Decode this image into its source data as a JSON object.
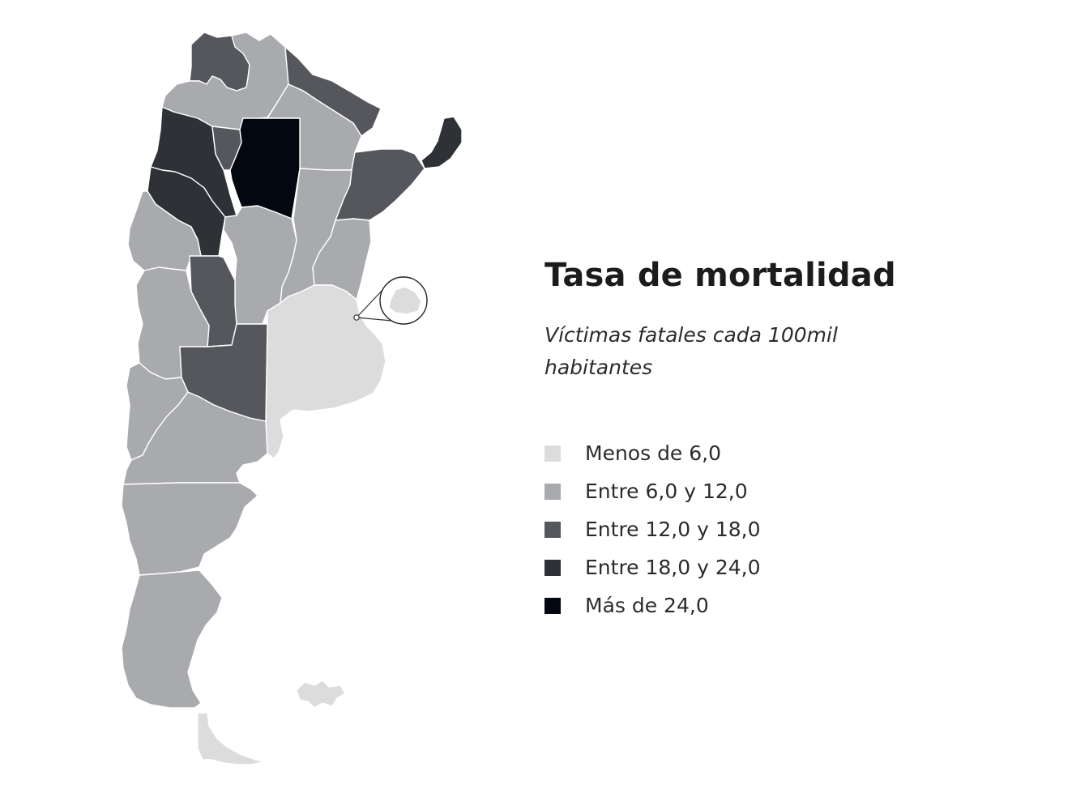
{
  "title": "Tasa de mortalidad",
  "subtitle": "Víctimas fatales cada 100mil habitantes",
  "legend": [
    {
      "label": "Menos de 6,0",
      "color": "#dcdcdc"
    },
    {
      "label": "Entre 6,0 y 12,0",
      "color": "#a9aaad"
    },
    {
      "label": "Entre 12,0 y 18,0",
      "color": "#55575c"
    },
    {
      "label": "Entre 18,0 y 24,0",
      "color": "#2e3136"
    },
    {
      "label": "Más de 24,0",
      "color": "#03070f"
    }
  ],
  "map": {
    "country": "Argentina",
    "regions": [
      {
        "id": "jujuy",
        "class": 2
      },
      {
        "id": "salta",
        "class": 1
      },
      {
        "id": "formosa",
        "class": 2
      },
      {
        "id": "chaco",
        "class": 1
      },
      {
        "id": "misiones",
        "class": 3
      },
      {
        "id": "catamarca",
        "class": 3
      },
      {
        "id": "tucuman",
        "class": 2
      },
      {
        "id": "santiago-del-estero",
        "class": 4
      },
      {
        "id": "corrientes",
        "class": 2
      },
      {
        "id": "la-rioja",
        "class": 3
      },
      {
        "id": "santa-fe",
        "class": 1
      },
      {
        "id": "entre-rios",
        "class": 1
      },
      {
        "id": "san-juan",
        "class": 1
      },
      {
        "id": "cordoba",
        "class": 1
      },
      {
        "id": "san-luis",
        "class": 2
      },
      {
        "id": "mendoza",
        "class": 1
      },
      {
        "id": "buenos-aires",
        "class": 0
      },
      {
        "id": "la-pampa",
        "class": 2
      },
      {
        "id": "neuquen",
        "class": 1
      },
      {
        "id": "rio-negro",
        "class": 1
      },
      {
        "id": "chubut",
        "class": 1
      },
      {
        "id": "santa-cruz",
        "class": 1
      },
      {
        "id": "tierra-del-fuego",
        "class": 0
      },
      {
        "id": "islas-malvinas",
        "class": 0
      },
      {
        "id": "caba",
        "class": 0
      }
    ]
  }
}
